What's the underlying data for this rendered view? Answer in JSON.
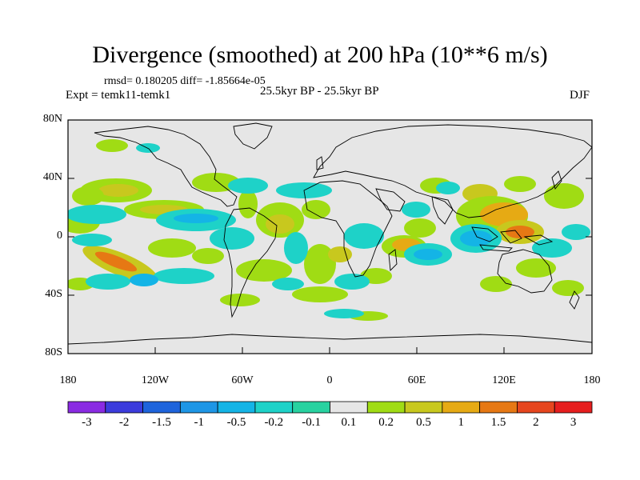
{
  "header": {
    "title": "Divergence (smoothed) at 200 hPa (10**6 m/s)",
    "stats": "rmsd= 0.180205 diff= -1.85664e-05",
    "experiment": "Expt = temk11-temk1",
    "period": "25.5kyr BP - 25.5kyr BP",
    "season": "DJF"
  },
  "axes": {
    "lat_labels": [
      "80N",
      "40N",
      "0",
      "40S",
      "80S"
    ],
    "lon_labels": [
      "180",
      "120W",
      "60W",
      "0",
      "60E",
      "120E",
      "180"
    ]
  },
  "colorbar": {
    "labels": [
      "-3",
      "-2",
      "-1.5",
      "-1",
      "-0.5",
      "-0.2",
      "-0.1",
      "0.1",
      "0.2",
      "0.5",
      "1",
      "1.5",
      "2",
      "3"
    ],
    "colors": [
      "#8a2be2",
      "#3c3cdc",
      "#1e64dc",
      "#1e96e6",
      "#14b4e6",
      "#1ed2c8",
      "#28d2a0",
      "#e6e6e6",
      "#a0dc14",
      "#c8c81e",
      "#e6aa14",
      "#e67814",
      "#e6461e",
      "#e61e1e"
    ]
  },
  "map_colors": {
    "background": "#e6e6e6",
    "coast": "#000000"
  }
}
